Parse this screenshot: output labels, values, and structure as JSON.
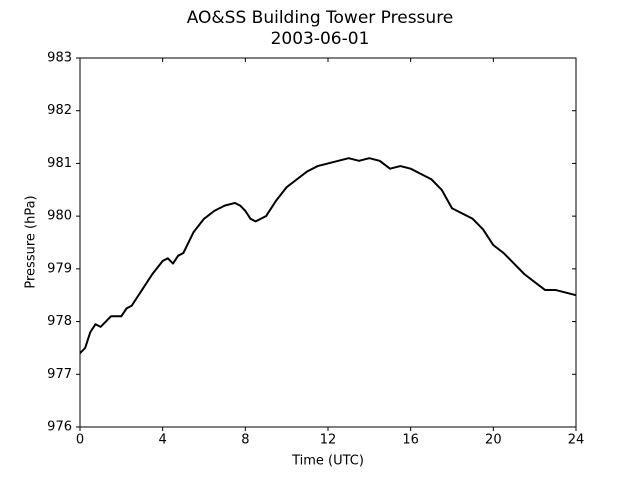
{
  "chart_data": {
    "type": "line",
    "title": "AO&SS Building Tower Pressure",
    "subtitle": "2003-06-01",
    "x_label": "Time (UTC)",
    "y_label": "Pressure (hPa)",
    "xlim": [
      0,
      24
    ],
    "xticks": [
      0,
      4,
      8,
      12,
      16,
      20,
      24
    ],
    "ylim": [
      976,
      983
    ],
    "yticks": [
      976,
      977,
      978,
      979,
      980,
      981,
      982,
      983
    ],
    "grid": false,
    "series": [
      {
        "name": "Pressure",
        "color": "#000000",
        "x": [
          0,
          0.25,
          0.5,
          0.75,
          1,
          1.25,
          1.5,
          2,
          2.25,
          2.5,
          3,
          3.5,
          4,
          4.25,
          4.5,
          4.75,
          5,
          5.5,
          6,
          6.5,
          7,
          7.5,
          7.75,
          8,
          8.25,
          8.5,
          9,
          9.5,
          10,
          10.5,
          11,
          11.5,
          12,
          12.5,
          13,
          13.5,
          14,
          14.5,
          15,
          15.5,
          16,
          16.5,
          17,
          17.5,
          18,
          18.5,
          19,
          19.5,
          20,
          20.5,
          21,
          21.5,
          22,
          22.5,
          23,
          23.5,
          24
        ],
        "values": [
          977.4,
          977.5,
          977.8,
          977.95,
          977.9,
          978.0,
          978.1,
          978.1,
          978.25,
          978.3,
          978.6,
          978.9,
          979.15,
          979.2,
          979.1,
          979.25,
          979.3,
          979.7,
          979.95,
          980.1,
          980.2,
          980.25,
          980.2,
          980.1,
          979.95,
          979.9,
          980.0,
          980.3,
          980.55,
          980.7,
          980.85,
          980.95,
          981.0,
          981.05,
          981.1,
          981.05,
          981.1,
          981.05,
          980.9,
          980.95,
          980.9,
          980.8,
          980.7,
          980.5,
          980.15,
          980.05,
          979.95,
          979.75,
          979.45,
          979.3,
          979.1,
          978.9,
          978.75,
          978.6,
          978.6,
          978.55,
          978.5
        ]
      }
    ]
  }
}
